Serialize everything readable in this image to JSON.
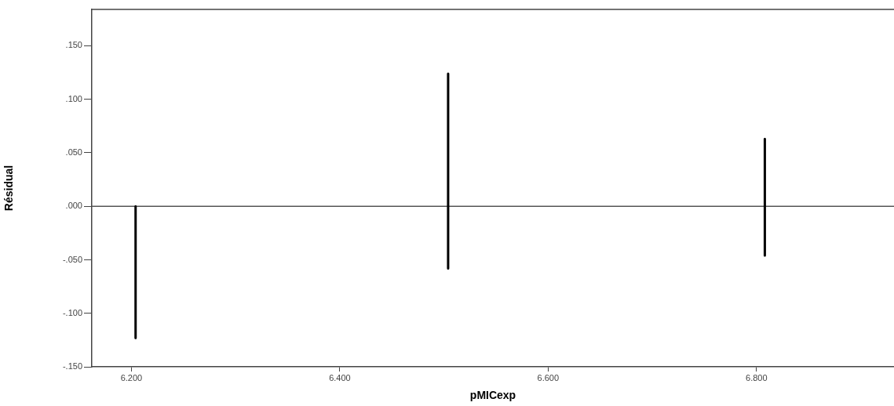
{
  "chart_data": {
    "type": "line",
    "xlabel": "pMICexp",
    "ylabel": "Résidual",
    "xlim": [
      6.162,
      6.932
    ],
    "ylim": [
      -0.15,
      0.184
    ],
    "xticks": [
      {
        "value": 6.2,
        "label": "6.200"
      },
      {
        "value": 6.4,
        "label": "6.400"
      },
      {
        "value": 6.6,
        "label": "6.600"
      },
      {
        "value": 6.8,
        "label": "6.800"
      }
    ],
    "yticks": [
      {
        "value": -0.15,
        "label": "-.150"
      },
      {
        "value": -0.1,
        "label": "-.100"
      },
      {
        "value": -0.05,
        "label": "-.050"
      },
      {
        "value": 0,
        "label": ".000"
      },
      {
        "value": 0.05,
        "label": ".050"
      },
      {
        "value": 0.1,
        "label": ".100"
      },
      {
        "value": 0.15,
        "label": ".150"
      }
    ],
    "series": [
      {
        "color": "#000000",
        "x": [
          6.204,
          6.204
        ],
        "values": [
          0,
          -0.123
        ]
      },
      {
        "color": "#000000",
        "x": [
          6.504,
          6.504
        ],
        "values": [
          0.124,
          -0.058
        ]
      },
      {
        "color": "#000000",
        "x": [
          6.808,
          6.808
        ],
        "values": [
          0.063,
          -0.046
        ]
      }
    ],
    "ref_lines": [
      {
        "axis": "y",
        "value": 0,
        "color": "#555555"
      }
    ],
    "marker": "none",
    "line_style": "solid",
    "grid": false,
    "legend": false
  }
}
